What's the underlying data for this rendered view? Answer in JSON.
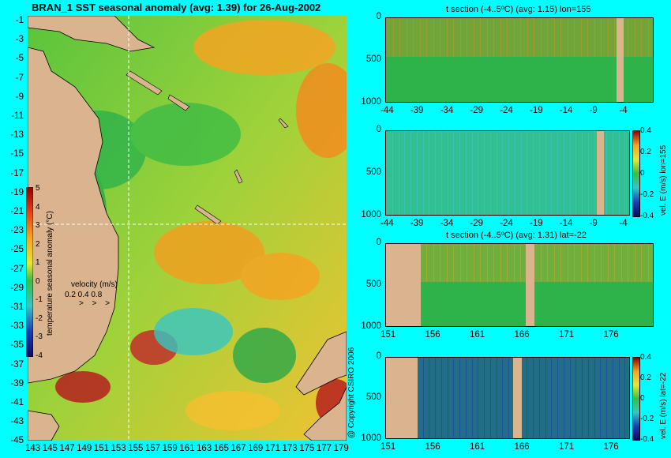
{
  "main_map": {
    "title": "BRAN_1 SST seasonal anomaly (avg: 1.39) for 26-Aug-2002",
    "lat_ticks": [
      "-1",
      "-3",
      "-5",
      "-7",
      "-9",
      "-11",
      "-13",
      "-15",
      "-17",
      "-19",
      "-21",
      "-23",
      "-25",
      "-27",
      "-29",
      "-31",
      "-33",
      "-35",
      "-37",
      "-39",
      "-41",
      "-43",
      "-45"
    ],
    "lon_ticks": [
      "143",
      "145",
      "147",
      "149",
      "151",
      "153",
      "155",
      "157",
      "159",
      "161",
      "163",
      "165",
      "167",
      "169",
      "171",
      "173",
      "175",
      "177",
      "179"
    ],
    "colorbar_label": "temperature seasonal anomaly (°C)",
    "colorbar_ticks": [
      "5",
      "4",
      "3",
      "2",
      "1",
      "0",
      "-1",
      "-2",
      "-3",
      "-4"
    ],
    "velocity_label": "velocity (m/s)",
    "velocity_scale": "0.2 0.4 0.8",
    "velocity_arrows": "> > >"
  },
  "sections": [
    {
      "title": "t section (-4..5ºC) (avg: 1.15) lon=155",
      "x_ticks": [
        "-44",
        "-39",
        "-34",
        "-29",
        "-24",
        "-19",
        "-14",
        "-9",
        "-4"
      ],
      "y_ticks": [
        "0",
        "500",
        "1000"
      ]
    },
    {
      "title": "",
      "x_ticks": [
        "-44",
        "-39",
        "-34",
        "-29",
        "-24",
        "-19",
        "-14",
        "-9",
        "-4"
      ],
      "y_ticks": [
        "0",
        "500",
        "1000"
      ],
      "colorbar_ticks": [
        "0.4",
        "0.2",
        "0",
        "-0.2",
        "-0.4"
      ],
      "side_label": "vel. E (m/s) lon=155"
    },
    {
      "title": "t section (-4..5ºC) (avg: 1.31) lat=-22",
      "x_ticks": [
        "151",
        "156",
        "161",
        "166",
        "171",
        "176"
      ],
      "y_ticks": [
        "0",
        "500",
        "1000"
      ]
    },
    {
      "title": "",
      "x_ticks": [
        "151",
        "156",
        "161",
        "166",
        "171",
        "176"
      ],
      "y_ticks": [
        "0",
        "500",
        "1000"
      ],
      "colorbar_ticks": [
        "0.4",
        "0.2",
        "0",
        "-0.2",
        "-0.4"
      ],
      "side_label": "vel. E (m/s) lat=-22"
    }
  ],
  "copyright": "@ Copyright CSIRO 2006",
  "colors": {
    "background": "#00FFFF",
    "land": "#D9B48F",
    "anomaly_green": "#2db34a",
    "anomaly_orange": "#f28c1e",
    "anomaly_red": "#b51f1f",
    "anomaly_blue": "#1a3fb0",
    "anomaly_cyan": "#37c6c6"
  }
}
